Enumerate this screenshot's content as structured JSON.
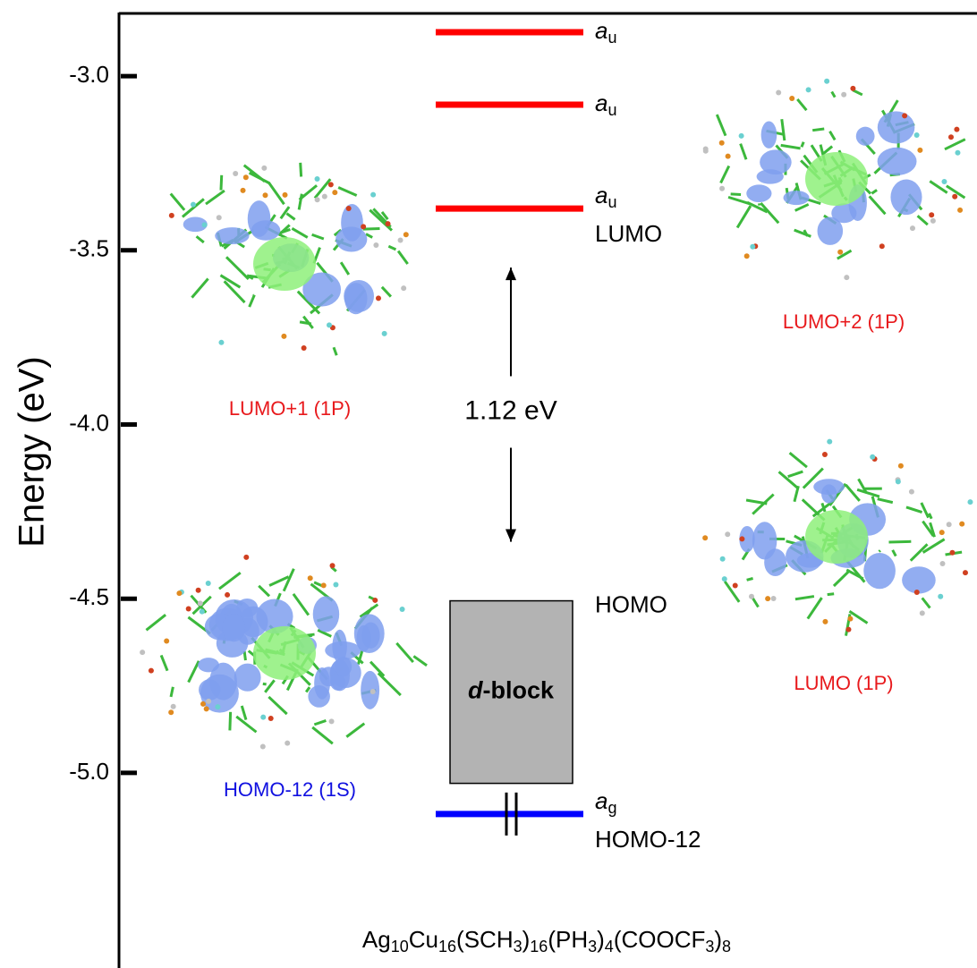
{
  "chart_data": {
    "type": "energy-level",
    "y_label": "Energy (eV)",
    "ylim": [
      -5.56,
      -2.82
    ],
    "yticks": [
      {
        "value": -3.0,
        "label": "-3.0"
      },
      -3.5,
      {
        "value": -4.0,
        "label": "-4.0"
      },
      -4.5,
      {
        "value": -5.0,
        "label": "-5.0"
      }
    ],
    "levels": [
      {
        "value": -2.874,
        "color": "#ff0000",
        "symbol": "a",
        "subscript": "u"
      },
      {
        "value": -3.082,
        "color": "#ff0000",
        "symbol": "a",
        "subscript": "u"
      },
      {
        "value": -3.38,
        "color": "#ff0000",
        "symbol": "a",
        "subscript": "u",
        "name": "LUMO"
      },
      {
        "value": -5.118,
        "color": "#0000ff",
        "symbol": "a",
        "subscript": "g",
        "name": "HOMO-12"
      }
    ],
    "d_block": {
      "top": -4.506,
      "bottom": -5.03,
      "color": "#b3b3b3",
      "label_italic": "d",
      "label": "-block",
      "name": "HOMO"
    },
    "gap_label": "1.12 eV",
    "orbitals": [
      {
        "label": "LUMO+1 (1P)",
        "color": "#e8191c"
      },
      {
        "label": "LUMO+2 (1P)",
        "color": "#e8191c"
      },
      {
        "label": "LUMO (1P)",
        "color": "#e8191c"
      },
      {
        "label": "HOMO-12 (1S)",
        "color": "#1010e0"
      }
    ],
    "formula": [
      [
        "Ag",
        "10"
      ],
      [
        "Cu",
        "16"
      ],
      [
        "(SCH",
        "3"
      ],
      [
        ")",
        "16"
      ],
      [
        "(PH",
        "3"
      ],
      [
        ")",
        "4"
      ],
      [
        "(COOCF",
        "3"
      ],
      [
        ")",
        "8"
      ]
    ]
  }
}
